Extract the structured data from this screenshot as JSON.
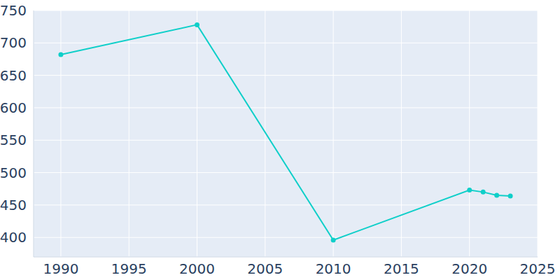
{
  "chart_data": {
    "type": "line",
    "x": [
      1990,
      2000,
      2010,
      2020,
      2021,
      2022,
      2023
    ],
    "values": [
      682,
      728,
      396,
      473,
      470,
      465,
      464
    ],
    "color": "#0fcfc9",
    "xlim": [
      1988,
      2025
    ],
    "xticks": [
      1990,
      1995,
      2000,
      2005,
      2010,
      2015,
      2020,
      2025
    ],
    "ylim": [
      370,
      750
    ],
    "yticks": [
      400,
      450,
      500,
      550,
      600,
      650,
      700,
      750
    ],
    "grid": true,
    "marker": "circle"
  }
}
